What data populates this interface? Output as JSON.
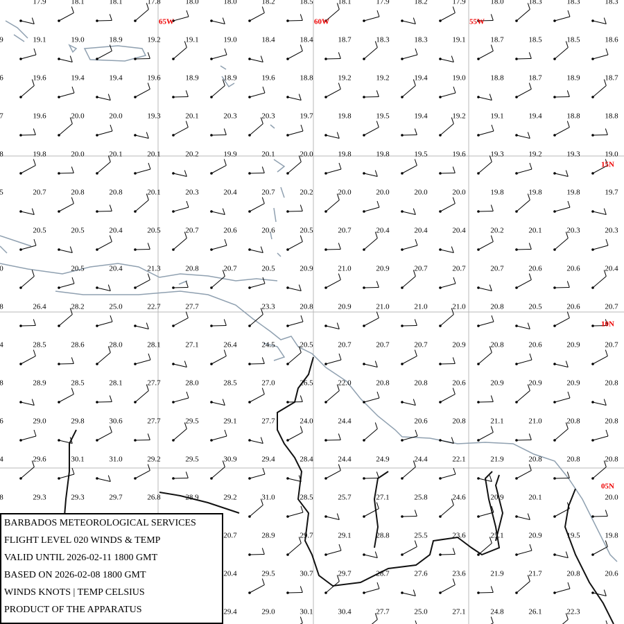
{
  "lon_labels": [
    "65W",
    "60W",
    "55W"
  ],
  "lat_labels": [
    "15N",
    "10N",
    "05N"
  ],
  "grid": [
    [
      null,
      "17.9",
      "18.1",
      "18.1",
      "17.8",
      "18.0",
      "18.0",
      "18.2",
      "18.5",
      "18.1",
      "17.9",
      "18.2",
      "17.9",
      "18.0",
      "18.3",
      "18.3",
      "18.3"
    ],
    [
      "9",
      "19.1",
      "19.0",
      "18.9",
      "19.2",
      "19.1",
      "19.0",
      "18.4",
      "18.4",
      "18.7",
      "18.3",
      "18.3",
      "19.1",
      "18.7",
      "18.5",
      "18.5",
      "18.6"
    ],
    [
      "6",
      "19.6",
      "19.4",
      "19.4",
      "19.6",
      "18.9",
      "18.9",
      "19.6",
      "18.8",
      "19.2",
      "19.2",
      "19.4",
      "19.0",
      "18.8",
      "18.7",
      "18.9",
      "18.7"
    ],
    [
      "7",
      "19.6",
      "20.0",
      "20.0",
      "19.3",
      "20.1",
      "20.3",
      "20.3",
      "19.7",
      "19.8",
      "19.5",
      "19.4",
      "19.2",
      "19.1",
      "19.4",
      "18.8",
      "18.8"
    ],
    [
      "8",
      "19.8",
      "20.0",
      "20.1",
      "20.1",
      "20.2",
      "19.9",
      "20.1",
      "20.0",
      "19.8",
      "19.8",
      "19.5",
      "19.6",
      "19.3",
      "19.2",
      "19.3",
      "19.0"
    ],
    [
      "5",
      "20.7",
      "20.8",
      "20.8",
      "20.1",
      "20.3",
      "20.4",
      "20.7",
      "20.2",
      "20.0",
      "20.0",
      "20.0",
      "20.0",
      "19.8",
      "19.8",
      "19.8",
      "19.7"
    ],
    [
      null,
      "20.5",
      "20.5",
      "20.4",
      "20.5",
      "20.7",
      "20.6",
      "20.6",
      "20.5",
      "20.7",
      "20.4",
      "20.4",
      "20.4",
      "20.2",
      "20.1",
      "20.3",
      "20.3"
    ],
    [
      "0",
      null,
      "20.5",
      "20.4",
      "21.3",
      "20.8",
      "20.7",
      "20.5",
      "20.9",
      "21.0",
      "20.9",
      "20.7",
      "20.7",
      "20.7",
      "20.6",
      "20.6",
      "20.4"
    ],
    [
      "8",
      "26.4",
      "28.2",
      "25.0",
      "22.7",
      "27.7",
      null,
      "23.3",
      "20.8",
      "20.9",
      "21.0",
      "21.0",
      "21.0",
      "20.8",
      "20.5",
      "20.6",
      "20.7"
    ],
    [
      "4",
      "28.5",
      "28.6",
      "28.0",
      "28.1",
      "27.1",
      "26.4",
      "24.5",
      "20.5",
      "20.7",
      "20.7",
      "20.7",
      "20.9",
      "20.8",
      "20.6",
      "20.9",
      "20.7"
    ],
    [
      "8",
      "28.9",
      "28.5",
      "28.1",
      "27.7",
      "28.0",
      "28.5",
      "27.0",
      "26.5",
      "22.0",
      "20.8",
      "20.8",
      "20.6",
      "20.9",
      "20.9",
      "20.9",
      "20.8"
    ],
    [
      "6",
      "29.0",
      "29.8",
      "30.6",
      "27.7",
      "29.5",
      "29.1",
      "27.7",
      "24.0",
      "24.4",
      null,
      "20.6",
      "20.8",
      "21.1",
      "21.0",
      "20.8",
      "20.8"
    ],
    [
      "4",
      "29.6",
      "30.1",
      "31.0",
      "29.2",
      "29.5",
      "30.9",
      "29.4",
      "28.4",
      "24.4",
      "24.9",
      "24.4",
      "22.1",
      "21.9",
      "20.8",
      "20.8",
      "20.8"
    ],
    [
      "8",
      "29.3",
      "29.3",
      "29.7",
      "26.8",
      "28.9",
      "29.2",
      "31.0",
      "28.5",
      "25.7",
      "27.1",
      "25.8",
      "24.6",
      "20.9",
      "20.1",
      null,
      "20.0"
    ],
    [
      null,
      null,
      null,
      null,
      null,
      null,
      "20.7",
      "28.9",
      "29.7",
      "29.1",
      "28.8",
      "25.5",
      "23.6",
      "25.1",
      "20.9",
      "19.5",
      "19.8"
    ],
    [
      null,
      null,
      null,
      null,
      null,
      null,
      "20.4",
      "29.5",
      "30.7",
      "29.7",
      "28.7",
      "27.6",
      "23.6",
      "21.9",
      "21.7",
      "20.8",
      "20.6"
    ],
    [
      null,
      null,
      null,
      null,
      null,
      null,
      "29.4",
      "29.0",
      "30.1",
      "30.4",
      "27.7",
      "25.0",
      "27.1",
      "24.8",
      "26.1",
      "22.3",
      null
    ]
  ],
  "legend": [
    "BARBADOS METEOROLOGICAL SERVICES",
    "FLIGHT LEVEL 020 WINDS & TEMP",
    "VALID UNTIL 2026-02-11 1800 GMT",
    "BASED ON 2026-02-08 1800 GMT",
    "WINDS KNOTS | TEMP CELSIUS",
    "PRODUCT OF THE APPARATUS"
  ]
}
